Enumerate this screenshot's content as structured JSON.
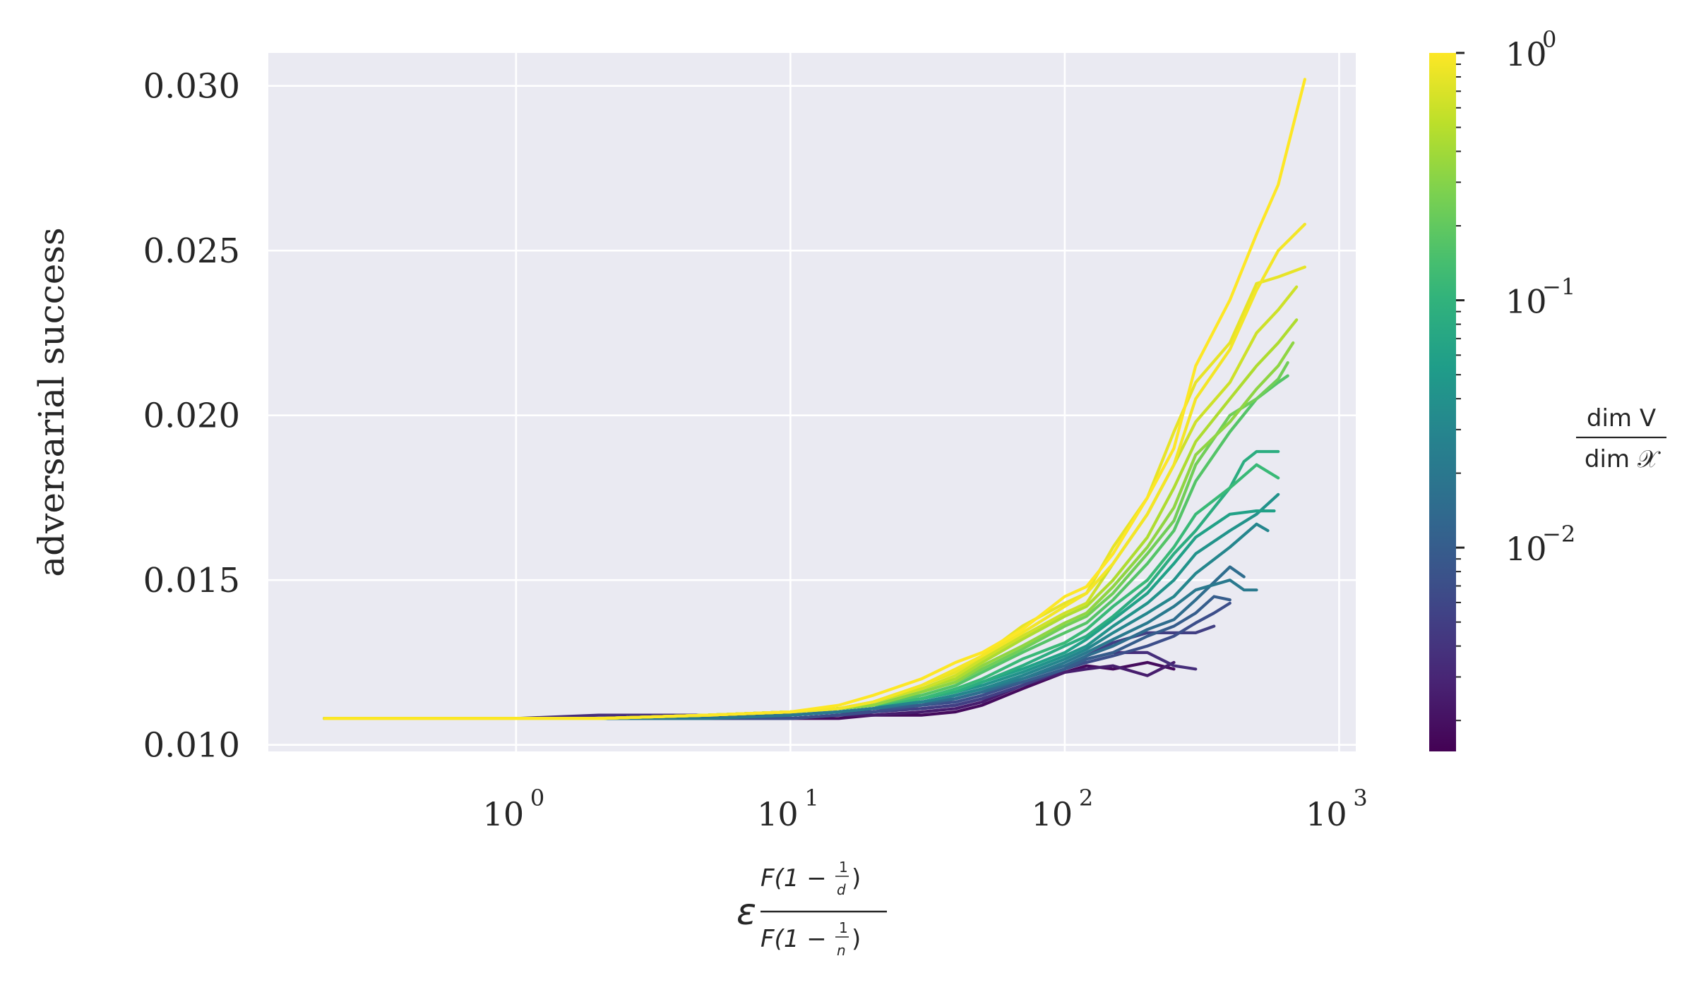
{
  "chart_data": {
    "type": "line",
    "title": "",
    "ylabel": "adversarial success",
    "xlabel_tex": "ε F(1−1/d) / F(1−1/n)",
    "xscale": "log",
    "xlim": [
      0.125,
      1150
    ],
    "ylim": [
      0.0098,
      0.031
    ],
    "grid": true,
    "background": "#EAEAF2",
    "x_ticks": [
      {
        "value": 1,
        "base": "10",
        "exp": "0"
      },
      {
        "value": 10,
        "base": "10",
        "exp": "1"
      },
      {
        "value": 100,
        "base": "10",
        "exp": "2"
      },
      {
        "value": 1000,
        "base": "10",
        "exp": "3"
      }
    ],
    "y_ticks": [
      {
        "value": 0.01,
        "label": "0.010"
      },
      {
        "value": 0.015,
        "label": "0.015"
      },
      {
        "value": 0.02,
        "label": "0.020"
      },
      {
        "value": 0.025,
        "label": "0.025"
      },
      {
        "value": 0.03,
        "label": "0.030"
      }
    ],
    "colorbar": {
      "colormap": "viridis",
      "scale": "log",
      "range": [
        0.0015,
        1
      ],
      "label_num": "dim V",
      "label_den": "dim 𝒳",
      "ticks": [
        {
          "value": 1,
          "base": "10",
          "exp": "0"
        },
        {
          "value": 0.1,
          "base": "10",
          "exp": "−1"
        },
        {
          "value": 0.01,
          "base": "10",
          "exp": "−2"
        }
      ]
    },
    "series": [
      {
        "c": 1.0,
        "x": [
          0.2,
          0.5,
          1,
          2,
          5,
          10,
          15,
          20,
          30,
          40,
          50,
          70,
          100,
          120,
          150,
          200,
          250,
          300,
          400,
          500,
          600,
          750
        ],
        "y": [
          0.0108,
          0.0108,
          0.0108,
          0.0108,
          0.0109,
          0.011,
          0.0112,
          0.0115,
          0.012,
          0.0125,
          0.0128,
          0.0135,
          0.0145,
          0.0148,
          0.0158,
          0.0175,
          0.019,
          0.0215,
          0.0235,
          0.0255,
          0.027,
          0.0302
        ]
      },
      {
        "c": 0.9,
        "x": [
          0.2,
          0.5,
          1,
          2,
          5,
          10,
          15,
          20,
          30,
          40,
          50,
          70,
          100,
          120,
          150,
          200,
          250,
          300,
          400,
          500,
          600,
          750
        ],
        "y": [
          0.0108,
          0.0108,
          0.0108,
          0.0108,
          0.0109,
          0.011,
          0.0111,
          0.0113,
          0.0118,
          0.0123,
          0.0127,
          0.0134,
          0.0142,
          0.0146,
          0.0155,
          0.017,
          0.0185,
          0.0205,
          0.022,
          0.0238,
          0.025,
          0.0258
        ]
      },
      {
        "c": 0.8,
        "x": [
          0.2,
          0.5,
          1,
          2,
          5,
          10,
          15,
          20,
          30,
          40,
          50,
          70,
          100,
          120,
          150,
          200,
          250,
          300,
          400,
          500,
          600,
          750
        ],
        "y": [
          0.0108,
          0.0108,
          0.0108,
          0.0108,
          0.0109,
          0.011,
          0.0111,
          0.0113,
          0.0118,
          0.0122,
          0.0127,
          0.0136,
          0.0143,
          0.0146,
          0.016,
          0.0175,
          0.0195,
          0.021,
          0.0222,
          0.024,
          0.0242,
          0.0245
        ]
      },
      {
        "c": 0.62,
        "x": [
          0.2,
          0.5,
          1,
          2,
          5,
          10,
          15,
          20,
          30,
          40,
          50,
          70,
          100,
          120,
          150,
          200,
          250,
          300,
          400,
          500,
          600,
          700
        ],
        "y": [
          0.0108,
          0.0108,
          0.0108,
          0.0108,
          0.0109,
          0.011,
          0.0111,
          0.0113,
          0.0117,
          0.0121,
          0.0126,
          0.0133,
          0.014,
          0.0143,
          0.0155,
          0.017,
          0.0185,
          0.0198,
          0.021,
          0.0225,
          0.0232,
          0.0239
        ]
      },
      {
        "c": 0.45,
        "x": [
          0.2,
          0.5,
          1,
          2,
          5,
          10,
          15,
          20,
          30,
          40,
          50,
          70,
          100,
          120,
          150,
          200,
          250,
          300,
          400,
          500,
          600,
          700
        ],
        "y": [
          0.0108,
          0.0108,
          0.0108,
          0.0108,
          0.0109,
          0.011,
          0.0111,
          0.0113,
          0.0117,
          0.012,
          0.0125,
          0.0132,
          0.0139,
          0.0142,
          0.015,
          0.0163,
          0.0178,
          0.0192,
          0.0205,
          0.0215,
          0.0222,
          0.0229
        ]
      },
      {
        "c": 0.33,
        "x": [
          0.2,
          0.5,
          1,
          2,
          5,
          10,
          15,
          20,
          30,
          40,
          50,
          70,
          100,
          120,
          150,
          200,
          250,
          300,
          400,
          500,
          600,
          680
        ],
        "y": [
          0.0108,
          0.0108,
          0.0108,
          0.0108,
          0.0109,
          0.011,
          0.0111,
          0.0112,
          0.0116,
          0.0119,
          0.0124,
          0.013,
          0.0137,
          0.014,
          0.0148,
          0.016,
          0.0172,
          0.0188,
          0.0198,
          0.0208,
          0.0215,
          0.0222
        ]
      },
      {
        "c": 0.24,
        "x": [
          0.2,
          0.5,
          1,
          2,
          5,
          10,
          15,
          20,
          30,
          40,
          50,
          70,
          100,
          120,
          150,
          200,
          250,
          300,
          400,
          500,
          600,
          650
        ],
        "y": [
          0.0108,
          0.0108,
          0.0108,
          0.0108,
          0.0109,
          0.011,
          0.0111,
          0.0112,
          0.0116,
          0.0119,
          0.0123,
          0.0129,
          0.0136,
          0.0139,
          0.0146,
          0.0158,
          0.0168,
          0.0185,
          0.02,
          0.0205,
          0.0211,
          0.0216
        ]
      },
      {
        "c": 0.17,
        "x": [
          0.2,
          0.5,
          1,
          2,
          5,
          10,
          15,
          20,
          30,
          40,
          50,
          70,
          100,
          120,
          150,
          200,
          250,
          300,
          400,
          500,
          600,
          650
        ],
        "y": [
          0.0108,
          0.0108,
          0.0108,
          0.0108,
          0.0109,
          0.011,
          0.0111,
          0.0112,
          0.0115,
          0.0118,
          0.0122,
          0.0128,
          0.0134,
          0.0137,
          0.0144,
          0.0155,
          0.0165,
          0.018,
          0.0195,
          0.0205,
          0.021,
          0.0212
        ]
      },
      {
        "c": 0.12,
        "x": [
          0.2,
          0.5,
          1,
          2,
          5,
          10,
          15,
          20,
          30,
          40,
          50,
          70,
          100,
          120,
          150,
          200,
          250,
          300,
          400,
          500,
          600
        ],
        "y": [
          0.0108,
          0.0108,
          0.0108,
          0.0108,
          0.0109,
          0.011,
          0.0111,
          0.0112,
          0.0114,
          0.0117,
          0.012,
          0.0126,
          0.0131,
          0.0135,
          0.0142,
          0.015,
          0.016,
          0.017,
          0.0178,
          0.0185,
          0.0181
        ]
      },
      {
        "c": 0.085,
        "x": [
          0.2,
          0.5,
          1,
          2,
          5,
          10,
          15,
          20,
          30,
          40,
          50,
          70,
          100,
          120,
          150,
          200,
          250,
          300,
          400,
          450,
          500,
          600
        ],
        "y": [
          0.0108,
          0.0108,
          0.0108,
          0.0108,
          0.0109,
          0.011,
          0.0111,
          0.0112,
          0.0114,
          0.0116,
          0.0119,
          0.0124,
          0.013,
          0.0133,
          0.0139,
          0.0148,
          0.0158,
          0.0165,
          0.0178,
          0.0186,
          0.0189,
          0.0189
        ]
      },
      {
        "c": 0.06,
        "x": [
          0.2,
          0.5,
          1,
          2,
          5,
          10,
          15,
          20,
          30,
          40,
          50,
          70,
          100,
          120,
          150,
          200,
          250,
          300,
          400,
          500,
          580
        ],
        "y": [
          0.0108,
          0.0108,
          0.0108,
          0.0108,
          0.0109,
          0.011,
          0.0111,
          0.0112,
          0.0114,
          0.0116,
          0.0119,
          0.0123,
          0.0128,
          0.0132,
          0.0138,
          0.0146,
          0.0155,
          0.0163,
          0.017,
          0.0171,
          0.0171
        ]
      },
      {
        "c": 0.042,
        "x": [
          0.2,
          0.5,
          1,
          2,
          5,
          10,
          15,
          20,
          30,
          40,
          50,
          70,
          100,
          120,
          150,
          200,
          250,
          300,
          400,
          500,
          600
        ],
        "y": [
          0.0108,
          0.0108,
          0.0108,
          0.0108,
          0.0109,
          0.011,
          0.0111,
          0.0112,
          0.0114,
          0.0116,
          0.0118,
          0.0122,
          0.0127,
          0.013,
          0.0136,
          0.0143,
          0.015,
          0.0158,
          0.0165,
          0.017,
          0.0176
        ]
      },
      {
        "c": 0.03,
        "x": [
          0.2,
          0.5,
          1,
          2,
          5,
          10,
          15,
          20,
          30,
          40,
          50,
          70,
          100,
          120,
          150,
          200,
          250,
          300,
          400,
          500,
          550
        ],
        "y": [
          0.0108,
          0.0108,
          0.0108,
          0.0108,
          0.0109,
          0.011,
          0.0111,
          0.0112,
          0.0113,
          0.0115,
          0.0117,
          0.0121,
          0.0126,
          0.0129,
          0.0134,
          0.014,
          0.0145,
          0.0152,
          0.016,
          0.0167,
          0.0165
        ]
      },
      {
        "c": 0.021,
        "x": [
          0.2,
          0.5,
          1,
          2,
          5,
          10,
          15,
          20,
          30,
          40,
          50,
          70,
          100,
          120,
          150,
          200,
          250,
          300,
          400,
          450,
          500
        ],
        "y": [
          0.0108,
          0.0108,
          0.0108,
          0.0108,
          0.0108,
          0.0109,
          0.011,
          0.0111,
          0.0113,
          0.0115,
          0.0117,
          0.012,
          0.0125,
          0.0128,
          0.0132,
          0.0137,
          0.0142,
          0.0147,
          0.015,
          0.0147,
          0.0147
        ]
      },
      {
        "c": 0.015,
        "x": [
          0.2,
          0.5,
          1,
          2,
          5,
          10,
          15,
          20,
          30,
          40,
          50,
          70,
          100,
          120,
          150,
          200,
          250,
          300,
          400,
          450
        ],
        "y": [
          0.0108,
          0.0108,
          0.0108,
          0.0108,
          0.0108,
          0.0109,
          0.011,
          0.0111,
          0.0113,
          0.0114,
          0.0116,
          0.012,
          0.0124,
          0.0127,
          0.013,
          0.0135,
          0.0138,
          0.0144,
          0.0154,
          0.0151
        ]
      },
      {
        "c": 0.01,
        "x": [
          0.2,
          0.5,
          1,
          2,
          5,
          10,
          15,
          20,
          30,
          40,
          50,
          70,
          100,
          120,
          150,
          200,
          250,
          300,
          350,
          400
        ],
        "y": [
          0.0108,
          0.0108,
          0.0108,
          0.0108,
          0.0108,
          0.0109,
          0.011,
          0.0111,
          0.0112,
          0.0114,
          0.0116,
          0.0119,
          0.0123,
          0.0126,
          0.0128,
          0.0133,
          0.0136,
          0.014,
          0.0145,
          0.0144
        ]
      },
      {
        "c": 0.007,
        "x": [
          0.2,
          0.5,
          1,
          2,
          5,
          10,
          15,
          20,
          30,
          40,
          50,
          70,
          100,
          120,
          150,
          200,
          250,
          300,
          350,
          400
        ],
        "y": [
          0.0108,
          0.0108,
          0.0108,
          0.0108,
          0.0108,
          0.0108,
          0.0109,
          0.011,
          0.0112,
          0.0113,
          0.0115,
          0.0119,
          0.0123,
          0.0125,
          0.0127,
          0.013,
          0.0133,
          0.0137,
          0.014,
          0.0143
        ]
      },
      {
        "c": 0.005,
        "x": [
          0.2,
          0.5,
          1,
          2,
          5,
          10,
          15,
          20,
          30,
          40,
          50,
          70,
          100,
          120,
          150,
          200,
          250,
          300,
          350
        ],
        "y": [
          0.0108,
          0.0108,
          0.0108,
          0.0108,
          0.0108,
          0.0108,
          0.0109,
          0.011,
          0.0111,
          0.0112,
          0.0114,
          0.0118,
          0.0123,
          0.0127,
          0.0131,
          0.0134,
          0.0134,
          0.0134,
          0.0136
        ]
      },
      {
        "c": 0.0035,
        "x": [
          0.2,
          0.5,
          1,
          2,
          5,
          10,
          15,
          20,
          30,
          40,
          50,
          70,
          100,
          120,
          150,
          200,
          250,
          300
        ],
        "y": [
          0.0108,
          0.0108,
          0.0108,
          0.0109,
          0.0109,
          0.0109,
          0.011,
          0.011,
          0.0111,
          0.0112,
          0.0114,
          0.0118,
          0.0123,
          0.0126,
          0.0128,
          0.0128,
          0.0124,
          0.0123
        ]
      },
      {
        "c": 0.0025,
        "x": [
          0.2,
          0.5,
          1,
          2,
          5,
          10,
          15,
          20,
          30,
          40,
          50,
          70,
          100,
          120,
          150,
          200,
          250
        ],
        "y": [
          0.0108,
          0.0108,
          0.0108,
          0.0108,
          0.0108,
          0.0108,
          0.0109,
          0.0109,
          0.011,
          0.0111,
          0.0113,
          0.0118,
          0.0122,
          0.0123,
          0.0124,
          0.0121,
          0.0125
        ]
      },
      {
        "c": 0.0018,
        "x": [
          0.2,
          0.5,
          1,
          2,
          5,
          10,
          15,
          20,
          30,
          40,
          50,
          70,
          100,
          120,
          150,
          200,
          250
        ],
        "y": [
          0.0108,
          0.0108,
          0.0108,
          0.0108,
          0.0108,
          0.0108,
          0.0108,
          0.0109,
          0.0109,
          0.011,
          0.0112,
          0.0117,
          0.0122,
          0.0124,
          0.0123,
          0.0125,
          0.0123
        ]
      }
    ]
  }
}
